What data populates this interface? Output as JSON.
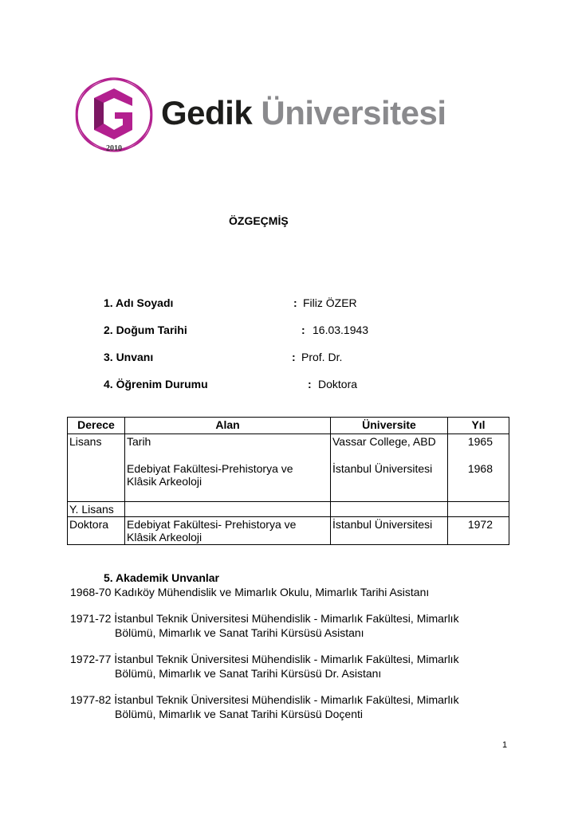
{
  "logo": {
    "name_dark": "Gedik",
    "name_light": "Üniversitesi",
    "year": "2010",
    "brand_color": "#b3208f"
  },
  "title": "ÖZGEÇMİŞ",
  "fields": [
    {
      "label": "1.  Adı Soyadı",
      "sep": ":",
      "value": "Filiz ÖZER"
    },
    {
      "label": "2.  Doğum Tarihi",
      "sep": ":",
      "value": "16.03.1943"
    },
    {
      "label": "3.  Unvanı",
      "sep": ":",
      "value": "Prof. Dr."
    },
    {
      "label": "4.  Öğrenim Durumu",
      "sep": ":",
      "value": "Doktora"
    }
  ],
  "table": {
    "headers": [
      "Derece",
      "Alan",
      "Üniversite",
      "Yıl"
    ],
    "rows": [
      {
        "derece": "Lisans",
        "alan1": "Tarih",
        "uni1": "Vassar College, ABD",
        "yil1": "1965",
        "alan2": "Edebiyat Fakültesi-Prehistorya ve",
        "alan2b": "Klâsik Arkeoloji",
        "uni2": "İstanbul Üniversitesi",
        "yil2": "1968"
      },
      {
        "derece": "Y. Lisans"
      },
      {
        "derece": "Doktora",
        "alan1": "Edebiyat Fakültesi- Prehistorya ve",
        "alan1b": "Klâsik Arkeoloji",
        "uni1": "İstanbul Üniversitesi",
        "yil1": "1972"
      }
    ]
  },
  "section5": {
    "heading": "5. Akademik Unvanlar",
    "entries": [
      {
        "line1": "1968-70 Kadıköy Mühendislik ve Mimarlık Okulu, Mimarlık Tarihi Asistanı",
        "line2": ""
      },
      {
        "line1": "1971-72 İstanbul Teknik Üniversitesi Mühendislik - Mimarlık Fakültesi, Mimarlık",
        "line2": "Bölümü, Mimarlık ve Sanat Tarihi Kürsüsü Asistanı"
      },
      {
        "line1": "1972-77 İstanbul Teknik Üniversitesi Mühendislik - Mimarlık Fakültesi, Mimarlık",
        "line2": "Bölümü, Mimarlık ve Sanat Tarihi Kürsüsü Dr. Asistanı"
      },
      {
        "line1": "1977-82 İstanbul Teknik Üniversitesi Mühendislik - Mimarlık Fakültesi, Mimarlık",
        "line2": "Bölümü, Mimarlık ve Sanat Tarihi Kürsüsü Doçenti"
      }
    ]
  },
  "page_number": "1"
}
